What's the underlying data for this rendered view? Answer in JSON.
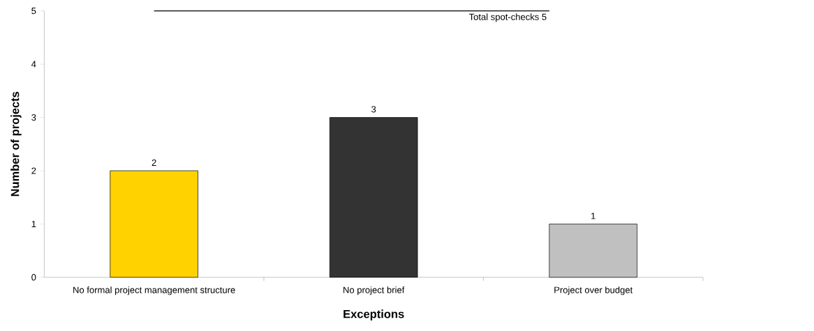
{
  "chart_data": {
    "type": "bar",
    "xlabel": "Exceptions",
    "ylabel": "Number of projects",
    "categories": [
      "No formal project management structure",
      "No project brief",
      "Project over budget"
    ],
    "values": [
      2,
      3,
      1
    ],
    "colors": [
      "#ffd200",
      "#333333",
      "#c0c0c0"
    ],
    "ylim": [
      0,
      5
    ],
    "yticks": [
      0,
      1,
      2,
      3,
      4,
      5
    ],
    "data_labels": true,
    "grid": false,
    "ref_lines": [
      {
        "axis": "y",
        "value": 5,
        "label": "Total spot-checks 5",
        "color": "#000000"
      }
    ]
  }
}
